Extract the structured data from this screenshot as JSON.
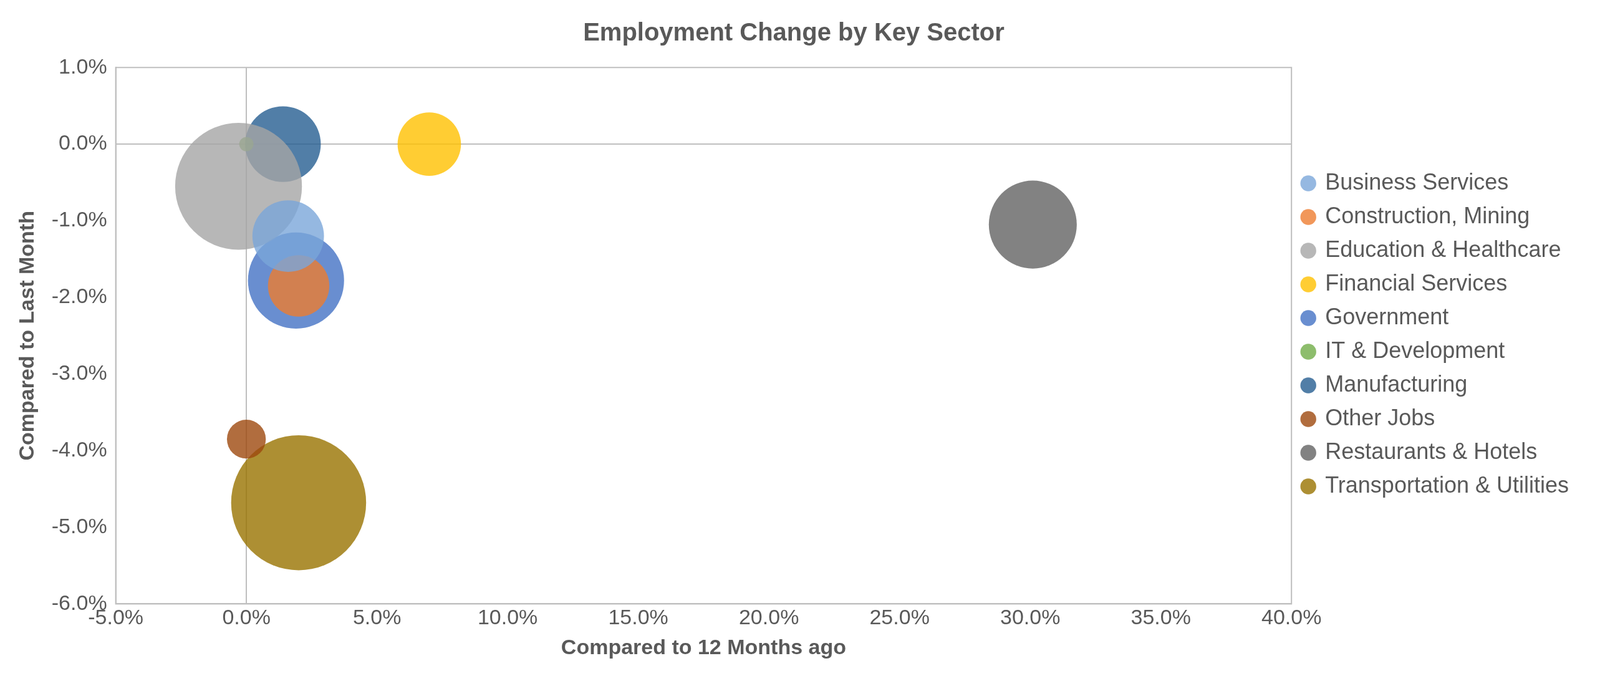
{
  "chart_data": {
    "type": "bubble",
    "title": "Employment Change by Key Sector",
    "x_label": "Compared to 12 Months ago",
    "y_label": "Compared to Last Month",
    "xlim": [
      -5,
      40
    ],
    "xticks": [
      {
        "value": -5,
        "label": "-5.0%"
      },
      {
        "value": 0,
        "label": "0.0%"
      },
      {
        "value": 5,
        "label": "5.0%"
      },
      {
        "value": 10,
        "label": "10.0%"
      },
      {
        "value": 15,
        "label": "15.0%"
      },
      {
        "value": 20,
        "label": "20.0%"
      },
      {
        "value": 25,
        "label": "25.0%"
      },
      {
        "value": 30,
        "label": "30.0%"
      },
      {
        "value": 35,
        "label": "35.0%"
      },
      {
        "value": 40,
        "label": "40.0%"
      }
    ],
    "ylim": [
      -6,
      1
    ],
    "yticks": [
      {
        "value": -6,
        "label": "-6.0%"
      },
      {
        "value": -5,
        "label": "-5.0%"
      },
      {
        "value": -4,
        "label": "-4.0%"
      },
      {
        "value": -3,
        "label": "-3.0%"
      },
      {
        "value": -2,
        "label": "-2.0%"
      },
      {
        "value": -1,
        "label": "-1.0%"
      },
      {
        "value": 0,
        "label": "0.0%"
      },
      {
        "value": 1,
        "label": "1.0%"
      }
    ],
    "grid": false,
    "legend": "right",
    "series": [
      {
        "name": "Business Services",
        "color": "#7aa6da",
        "x": 1.6,
        "y": -1.2,
        "size": 35
      },
      {
        "name": "Construction, Mining",
        "color": "#ed7d31",
        "x": 2.0,
        "y": -1.85,
        "size": 30
      },
      {
        "name": "Education & Healthcare",
        "color": "#a5a5a5",
        "x": -0.3,
        "y": -0.55,
        "size": 62
      },
      {
        "name": "Financial Services",
        "color": "#ffc000",
        "x": 7.0,
        "y": 0.0,
        "size": 31
      },
      {
        "name": "Government",
        "color": "#4472c4",
        "x": 1.9,
        "y": -1.78,
        "size": 47
      },
      {
        "name": "IT & Development",
        "color": "#70ad47",
        "x": 0.0,
        "y": 0.0,
        "size": 7
      },
      {
        "name": "Manufacturing",
        "color": "#255e91",
        "x": 1.4,
        "y": 0.0,
        "size": 37
      },
      {
        "name": "Other Jobs",
        "color": "#9e480e",
        "x": 0.0,
        "y": -3.85,
        "size": 19
      },
      {
        "name": "Restaurants & Hotels",
        "color": "#636363",
        "x": 30.1,
        "y": -1.05,
        "size": 43
      },
      {
        "name": "Transportation & Utilities",
        "color": "#997300",
        "x": 2.0,
        "y": -4.68,
        "size": 66
      }
    ]
  }
}
